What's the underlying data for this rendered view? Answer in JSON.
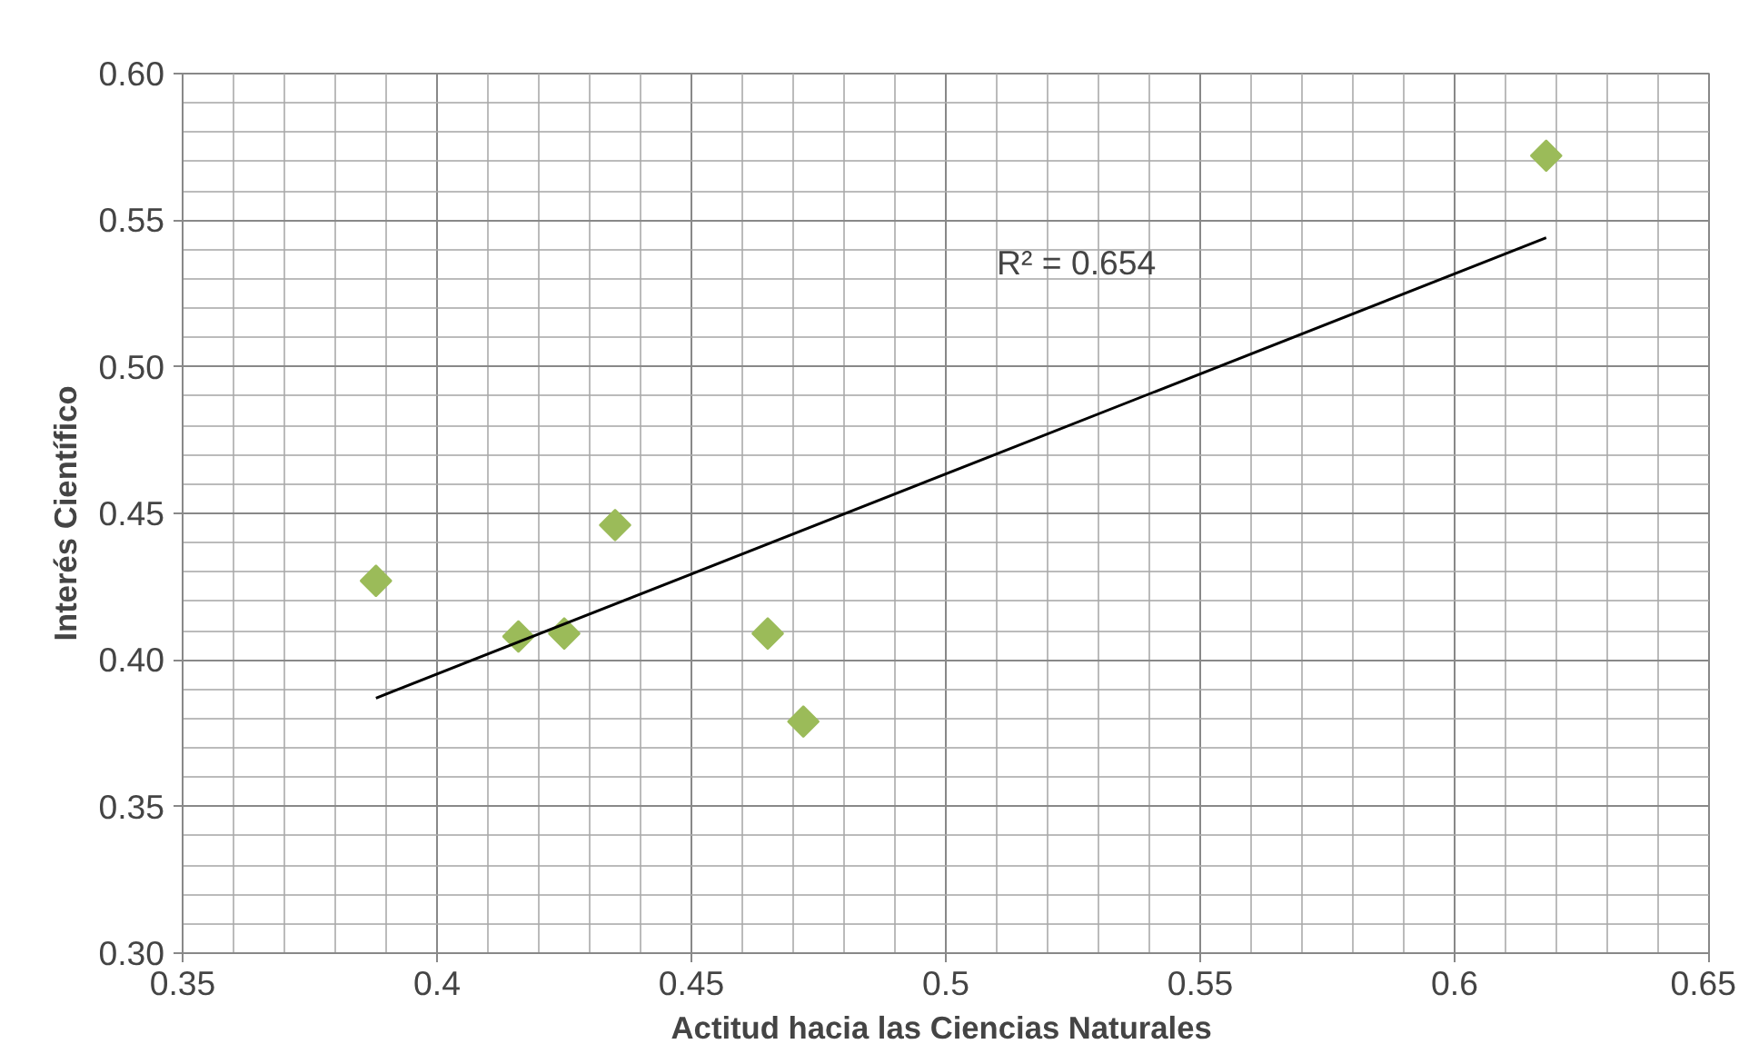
{
  "chart_data": {
    "type": "scatter",
    "xlabel": "Actitud  hacia las Ciencias Naturales",
    "ylabel": "Interés Científico",
    "xlim": [
      0.35,
      0.65
    ],
    "xticks": [
      0.35,
      0.4,
      0.45,
      0.5,
      0.55,
      0.6,
      0.65
    ],
    "ylim": [
      0.3,
      0.6
    ],
    "yticks": [
      {
        "value": 0.3,
        "label": "0.30"
      },
      {
        "value": 0.35,
        "label": "0.35"
      },
      {
        "value": 0.4,
        "label": "0.40"
      },
      {
        "value": 0.45,
        "label": "0.45"
      },
      {
        "value": 0.5,
        "label": "0.50"
      },
      {
        "value": 0.55,
        "label": "0.55"
      },
      {
        "value": 0.6,
        "label": "0.60"
      }
    ],
    "grid": true,
    "marker": "diamond",
    "x": [
      0.388,
      0.416,
      0.425,
      0.435,
      0.465,
      0.472,
      0.618
    ],
    "series": [
      {
        "color": "#9bbb59",
        "values": [
          0.427,
          0.408,
          0.409,
          0.446,
          0.409,
          0.379,
          0.572
        ]
      },
      {
        "type": "line",
        "marker": "none",
        "color": "#000000",
        "x": [
          0.388,
          0.618
        ],
        "values": [
          0.387,
          0.544
        ]
      }
    ],
    "annotations": [
      "R² = 0.654"
    ]
  }
}
